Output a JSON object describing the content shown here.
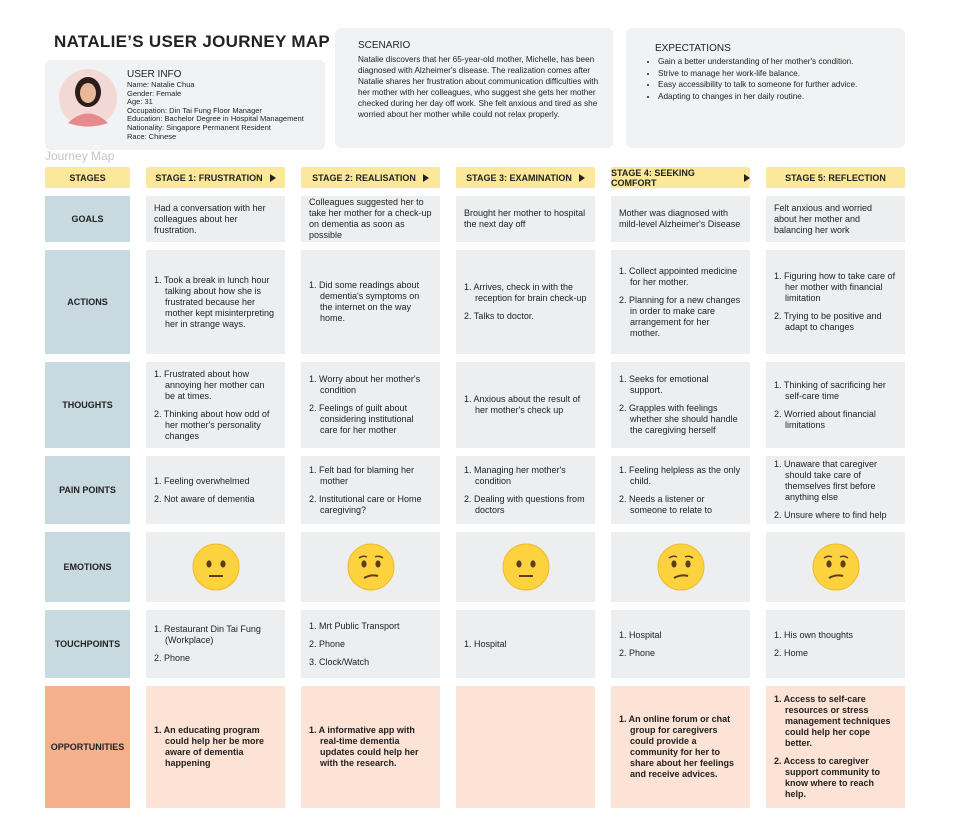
{
  "header": {
    "title": "NATALIE’S USER JOURNEY MAP"
  },
  "user_info": {
    "heading": "USER INFO",
    "lines": [
      "Name: Natalie Chua",
      "Gender: Female",
      "Age: 31",
      "Occupation: Din Tai Fung Floor Manager",
      "Education: Bachelor Degree in Hospital Management",
      "Nationality: Singapore Permanent Resident",
      "Race: Chinese"
    ]
  },
  "scenario": {
    "heading": "SCENARIO",
    "text": "Natalie discovers that her 65-year-old mother, Michelle, has been diagnosed with Alzheimer's disease. The realization comes after Natalie shares her frustration about communication difficulties with her mother with her colleagues, who suggest she gets her mother checked during her day off work. She felt anxious and tired as she worried about her mother while could not relax properly."
  },
  "expectations": {
    "heading": "EXPECTATIONS",
    "items": [
      "Gain a better understanding of her mother's condition.",
      "Strive to manage her work-life balance.",
      "Easy accessibility to talk to someone for further advice.",
      "Adapting to changes in her daily routine."
    ]
  },
  "journey": {
    "label": "Journey Map",
    "stages_label": "STAGES",
    "stages": [
      "STAGE 1: FRUSTRATION",
      "STAGE 2: REALISATION",
      "STAGE 3: EXAMINATION",
      "STAGE 4: SEEKING COMFORT",
      "STAGE 5: REFLECTION"
    ],
    "rows": [
      {
        "label": "GOALS",
        "cells": [
          [
            "Had a conversation with her colleagues about her frustration."
          ],
          [
            "Colleagues suggested her to take her mother for a check-up on dementia as soon as possible"
          ],
          [
            "Brought her mother to hospital the next day off"
          ],
          [
            "Mother was diagnosed with mild-level Alzheimer's Disease"
          ],
          [
            "Felt anxious and worried about her mother and balancing her work"
          ]
        ]
      },
      {
        "label": "ACTIONS",
        "cells": [
          [
            "1. Took a break in lunch hour talking about how she is frustrated because her mother kept misinterpreting her in strange ways."
          ],
          [
            "1. Did some readings about dementia's symptoms on the internet on the way home."
          ],
          [
            "1. Arrives, check in with the reception for brain check-up",
            "2. Talks to doctor."
          ],
          [
            "1. Collect appointed medicine for her mother.",
            "2. Planning for a new changes in order to make care arrangement for her mother."
          ],
          [
            "1. Figuring how to take care of her mother with financial limitation",
            "2. Trying to be positive and adapt to changes"
          ]
        ]
      },
      {
        "label": "THOUGHTS",
        "cells": [
          [
            "1. Frustrated about how annoying her mother can be at times.",
            "2. Thinking about how odd of her mother's personality changes"
          ],
          [
            "1. Worry about her mother's condition",
            "2. Feelings of guilt about considering institutional care for her mother"
          ],
          [
            "1. Anxious about the result of her mother's check up"
          ],
          [
            "1. Seeks for emotional support.",
            "2. Grapples with feelings whether she should handle the caregiving herself"
          ],
          [
            "1. Thinking of sacrificing her self-care time",
            "2. Worried about financial limitations"
          ]
        ]
      },
      {
        "label": "PAIN POINTS",
        "cells": [
          [
            "1. Feeling overwhelmed",
            "2. Not aware of dementia"
          ],
          [
            "1. Felt bad for blaming her mother",
            "2. Institutional care or Home caregiving?"
          ],
          [
            "1. Managing her mother's condition",
            "2. Dealing with questions from doctors"
          ],
          [
            "1. Feeling helpless as the only child.",
            "2. Needs a listener or someone to relate to"
          ],
          [
            "1. Unaware that caregiver should take care of themselves first before anything else",
            "2. Unsure where to find help"
          ]
        ]
      },
      {
        "label": "EMOTIONS",
        "cells": [
          null,
          null,
          null,
          null,
          null
        ]
      },
      {
        "label": "TOUCHPOINTS",
        "cells": [
          [
            "1. Restaurant Din Tai Fung (Workplace)",
            "2. Phone"
          ],
          [
            "1. Mrt Public Transport",
            "2. Phone",
            "3. Clock/Watch"
          ],
          [
            "1. Hospital"
          ],
          [
            "1. Hospital",
            "2. Phone"
          ],
          [
            "1. His own thoughts",
            "2. Home"
          ]
        ]
      },
      {
        "label": "OPPORTUNITIES",
        "cells": [
          [
            "1. An educating program could help her be more aware of dementia happening"
          ],
          [
            "1.  A informative app with real-time dementia updates could help her with the research."
          ],
          null,
          [
            "1. An online forum or chat group for caregivers could provide a community for her to share about her feelings and receive advices."
          ],
          [
            "1. Access to self-care resources or stress management techniques could help her cope better.",
            "2. Access to caregiver support community to know where to reach help."
          ]
        ]
      }
    ]
  }
}
